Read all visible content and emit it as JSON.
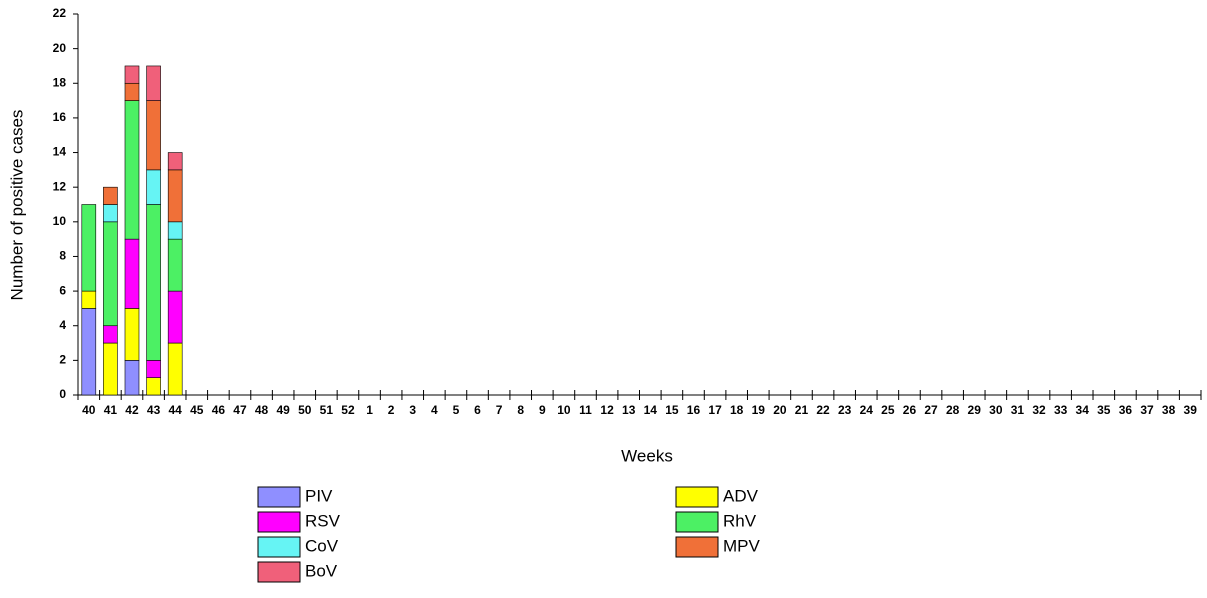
{
  "chart_data": {
    "type": "stacked-bar",
    "y_label": "Number of positive cases",
    "x_label": "Weeks",
    "categories": [
      "40",
      "41",
      "42",
      "43",
      "44",
      "45",
      "46",
      "47",
      "48",
      "49",
      "50",
      "51",
      "52",
      "1",
      "2",
      "3",
      "4",
      "5",
      "6",
      "7",
      "8",
      "9",
      "10",
      "11",
      "12",
      "13",
      "14",
      "15",
      "16",
      "17",
      "18",
      "19",
      "20",
      "21",
      "22",
      "23",
      "24",
      "25",
      "26",
      "27",
      "28",
      "29",
      "30",
      "31",
      "32",
      "33",
      "34",
      "35",
      "36",
      "37",
      "38",
      "39"
    ],
    "series": [
      {
        "name": "PIV",
        "color": "#8f8fff",
        "values": [
          5,
          0,
          2,
          0,
          0,
          null,
          null,
          null,
          null,
          null,
          null,
          null,
          null,
          null,
          null,
          null,
          null,
          null,
          null,
          null,
          null,
          null,
          null,
          null,
          null,
          null,
          null,
          null,
          null,
          null,
          null,
          null,
          null,
          null,
          null,
          null,
          null,
          null,
          null,
          null,
          null,
          null,
          null,
          null,
          null,
          null,
          null,
          null,
          null,
          null,
          null,
          null
        ]
      },
      {
        "name": "ADV",
        "color": "#ffff00",
        "values": [
          1,
          3,
          3,
          1,
          3,
          null,
          null,
          null,
          null,
          null,
          null,
          null,
          null,
          null,
          null,
          null,
          null,
          null,
          null,
          null,
          null,
          null,
          null,
          null,
          null,
          null,
          null,
          null,
          null,
          null,
          null,
          null,
          null,
          null,
          null,
          null,
          null,
          null,
          null,
          null,
          null,
          null,
          null,
          null,
          null,
          null,
          null,
          null,
          null,
          null,
          null,
          null
        ]
      },
      {
        "name": "RSV",
        "color": "#ff00ff",
        "values": [
          0,
          1,
          4,
          1,
          3,
          null,
          null,
          null,
          null,
          null,
          null,
          null,
          null,
          null,
          null,
          null,
          null,
          null,
          null,
          null,
          null,
          null,
          null,
          null,
          null,
          null,
          null,
          null,
          null,
          null,
          null,
          null,
          null,
          null,
          null,
          null,
          null,
          null,
          null,
          null,
          null,
          null,
          null,
          null,
          null,
          null,
          null,
          null,
          null,
          null,
          null,
          null
        ]
      },
      {
        "name": "RhV",
        "color": "#4cf064",
        "values": [
          5,
          6,
          8,
          9,
          3,
          null,
          null,
          null,
          null,
          null,
          null,
          null,
          null,
          null,
          null,
          null,
          null,
          null,
          null,
          null,
          null,
          null,
          null,
          null,
          null,
          null,
          null,
          null,
          null,
          null,
          null,
          null,
          null,
          null,
          null,
          null,
          null,
          null,
          null,
          null,
          null,
          null,
          null,
          null,
          null,
          null,
          null,
          null,
          null,
          null,
          null,
          null
        ]
      },
      {
        "name": "CoV",
        "color": "#66f4f4",
        "values": [
          0,
          1,
          0,
          2,
          1,
          null,
          null,
          null,
          null,
          null,
          null,
          null,
          null,
          null,
          null,
          null,
          null,
          null,
          null,
          null,
          null,
          null,
          null,
          null,
          null,
          null,
          null,
          null,
          null,
          null,
          null,
          null,
          null,
          null,
          null,
          null,
          null,
          null,
          null,
          null,
          null,
          null,
          null,
          null,
          null,
          null,
          null,
          null,
          null,
          null,
          null,
          null
        ]
      },
      {
        "name": "MPV",
        "color": "#f07038",
        "values": [
          0,
          1,
          1,
          4,
          3,
          null,
          null,
          null,
          null,
          null,
          null,
          null,
          null,
          null,
          null,
          null,
          null,
          null,
          null,
          null,
          null,
          null,
          null,
          null,
          null,
          null,
          null,
          null,
          null,
          null,
          null,
          null,
          null,
          null,
          null,
          null,
          null,
          null,
          null,
          null,
          null,
          null,
          null,
          null,
          null,
          null,
          null,
          null,
          null,
          null,
          null,
          null
        ]
      },
      {
        "name": "BoV",
        "color": "#f0607a",
        "values": [
          0,
          0,
          1,
          2,
          1,
          null,
          null,
          null,
          null,
          null,
          null,
          null,
          null,
          null,
          null,
          null,
          null,
          null,
          null,
          null,
          null,
          null,
          null,
          null,
          null,
          null,
          null,
          null,
          null,
          null,
          null,
          null,
          null,
          null,
          null,
          null,
          null,
          null,
          null,
          null,
          null,
          null,
          null,
          null,
          null,
          null,
          null,
          null,
          null,
          null,
          null,
          null
        ]
      }
    ],
    "ylim": [
      0,
      22
    ],
    "yticks": [
      0,
      2,
      4,
      6,
      8,
      10,
      12,
      14,
      16,
      18,
      20,
      22
    ]
  }
}
